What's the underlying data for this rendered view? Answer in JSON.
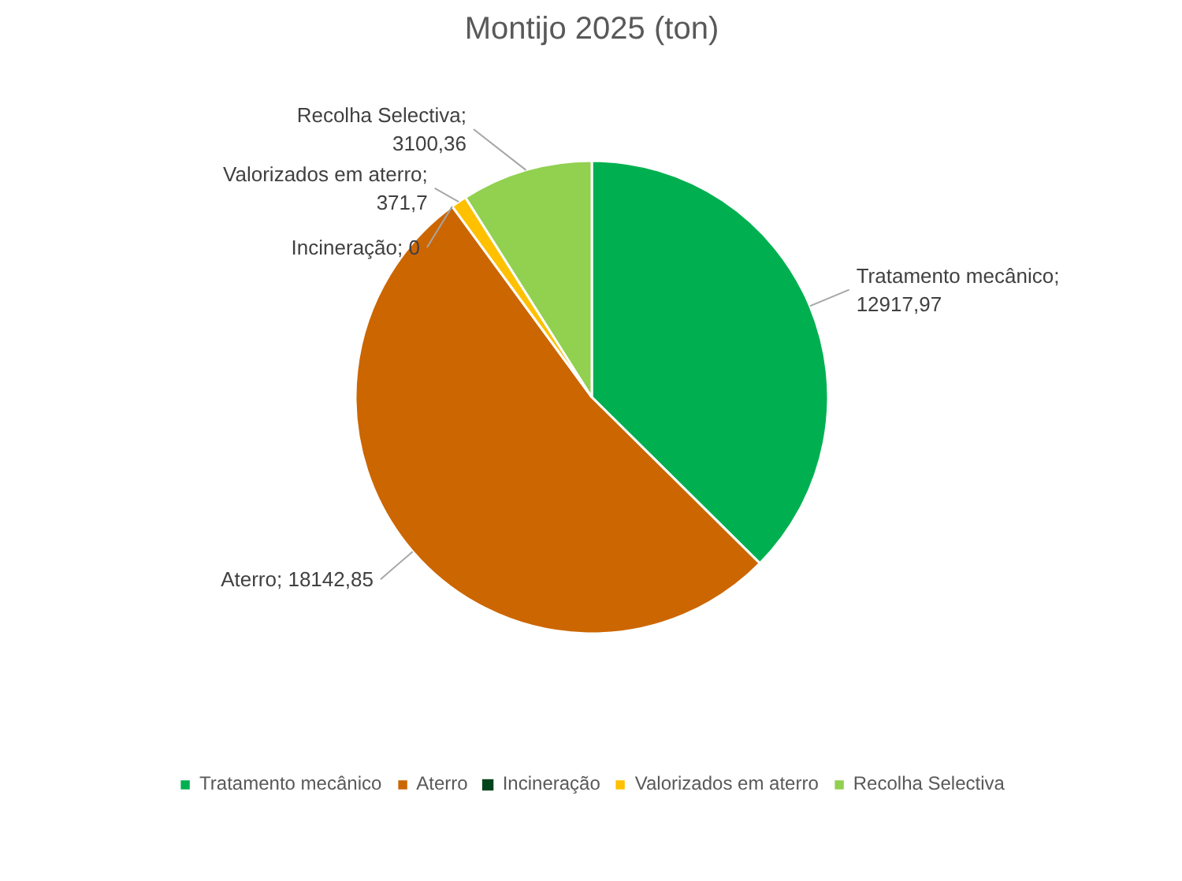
{
  "chart_data": {
    "type": "pie",
    "title": "Montijo 2025 (ton)",
    "categories": [
      "Tratamento mecânico",
      "Aterro",
      "Incineração",
      "Valorizados em aterro",
      "Recolha Selectiva"
    ],
    "values": [
      12917.97,
      18142.85,
      0,
      371.7,
      3100.36
    ],
    "value_labels": [
      "Tratamento mecânico; 12917,97",
      "Aterro; 18142,85",
      "Incineração; 0",
      "Valorizados em aterro; 371,7",
      "Recolha Selectiva; 3100,36"
    ],
    "colors": [
      "#00b050",
      "#cc6600",
      "#00441b",
      "#ffc000",
      "#92d050"
    ],
    "legend": "bottom"
  }
}
